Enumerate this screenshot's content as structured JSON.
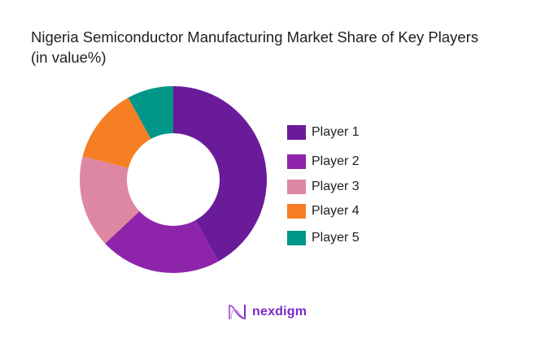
{
  "chart_data": {
    "type": "pie",
    "variant": "donut",
    "title": "Nigeria Semiconductor Manufacturing Market Share of Key Players (in value%)",
    "categories": [
      "Player 1",
      "Player 2",
      "Player 3",
      "Player 4",
      "Player 5"
    ],
    "values": [
      42,
      21,
      16,
      13,
      8
    ],
    "colors": [
      "#6a1b9a",
      "#8e24aa",
      "#de87a3",
      "#f57f22",
      "#009688"
    ],
    "unit": "%",
    "legend_position": "right",
    "start_angle": "top, clockwise"
  },
  "header": {
    "title_line1": "Nigeria Semiconductor Manufacturing Market Share of Key Players",
    "title_line2": "(in value%)"
  },
  "legend": {
    "items": [
      {
        "label": "Player 1",
        "color": "#6a1b9a"
      },
      {
        "label": "Player 2",
        "color": "#8e24aa"
      },
      {
        "label": "Player 3",
        "color": "#de87a3"
      },
      {
        "label": "Player 4",
        "color": "#f57f22"
      },
      {
        "label": "Player 5",
        "color": "#009688"
      }
    ]
  },
  "footer": {
    "brand": "nexdigm",
    "brand_color": "#7a2bc9"
  }
}
